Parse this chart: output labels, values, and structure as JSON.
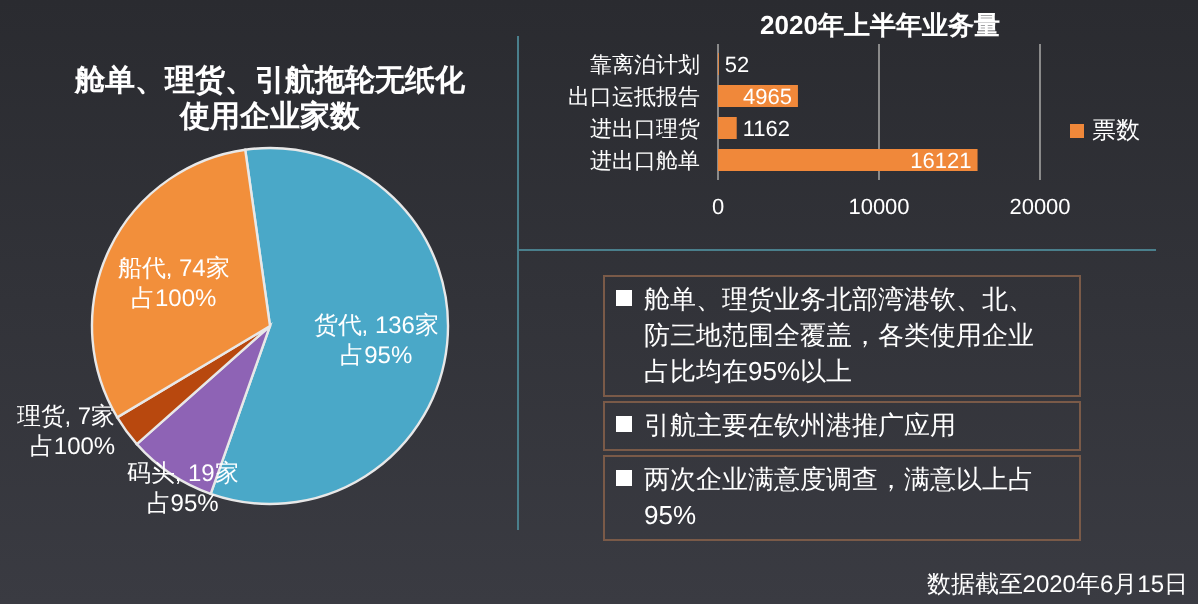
{
  "chart_data": [
    {
      "type": "pie",
      "title": "舱单、理货、引航拖轮无纸化使用企业家数",
      "categories": [
        "货代",
        "码头",
        "理货",
        "船代"
      ],
      "values": [
        136,
        19,
        7,
        74
      ],
      "colors": [
        "#4aa8c8",
        "#8e63b5",
        "#b8480e",
        "#f28f3b"
      ],
      "value_labels": [
        "136家",
        "19家",
        "7家",
        "74家"
      ],
      "annotations": [
        {
          "text": "占95%",
          "x": "货代"
        },
        {
          "text": "占95%",
          "x": "码头"
        },
        {
          "text": "占100%",
          "x": "理货"
        },
        {
          "text": "占100%",
          "x": "船代"
        }
      ]
    },
    {
      "type": "bar",
      "orientation": "horizontal",
      "title": "2020年上半年业务量",
      "categories": [
        "靠离泊计划",
        "出口运抵报告",
        "进出口理货",
        "进出口舱单"
      ],
      "series": [
        {
          "name": "票数",
          "color": "#f0883a",
          "values": [
            52,
            4965,
            1162,
            16121
          ]
        }
      ],
      "xlim": [
        0,
        20000
      ],
      "xticks": [
        0,
        10000,
        20000
      ],
      "grid": "x",
      "legend": "right",
      "data_labels": true
    },
    {
      "type": "other",
      "annotations": [
        "舱单、理货业务北部湾港钦、北、防三地范围全覆盖，各类使用企业占比均在95%以上",
        "引航主要在钦州港推广应用",
        "两次企业满意度调查，满意以上占95%",
        "数据截至2020年6月15日"
      ]
    }
  ]
}
